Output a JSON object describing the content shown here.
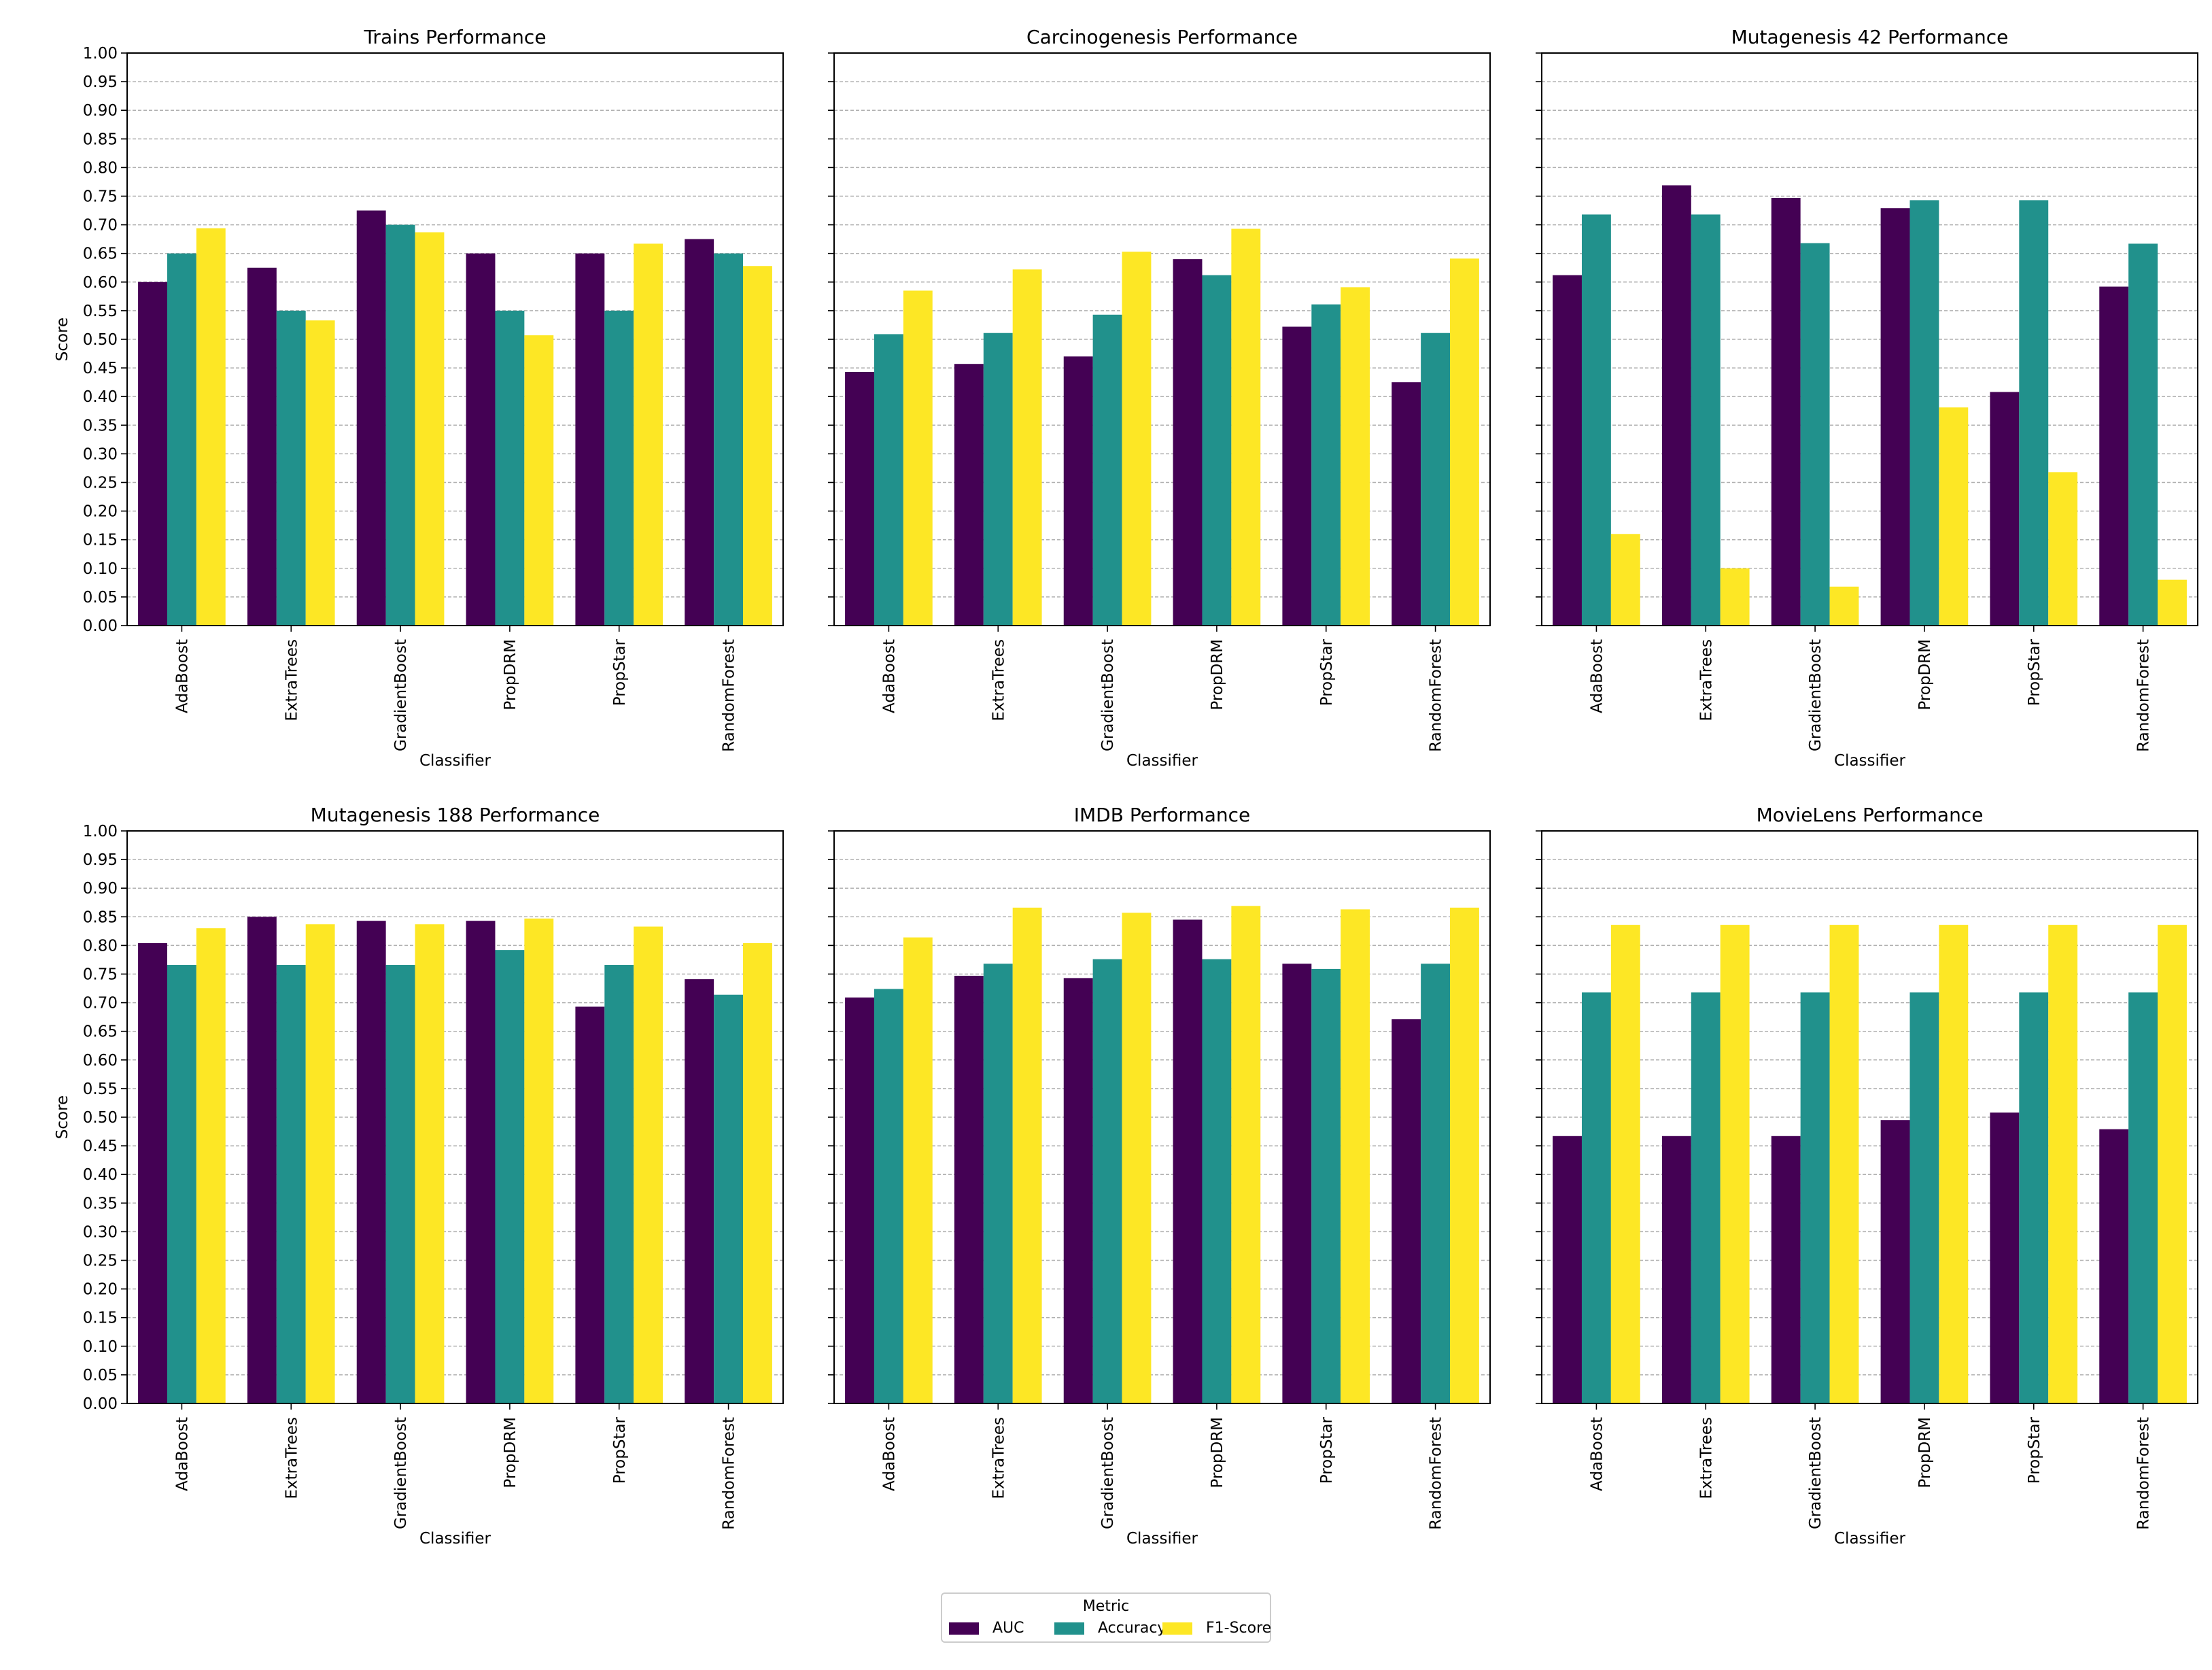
{
  "colors": {
    "AUC": "#440154",
    "Accuracy": "#21918c",
    "F1-Score": "#fde725"
  },
  "legend": {
    "title": "Metric",
    "items": [
      "AUC",
      "Accuracy",
      "F1-Score"
    ]
  },
  "chart_data": [
    {
      "type": "bar",
      "title": "Trains Performance",
      "categories": [
        "AdaBoost",
        "ExtraTrees",
        "GradientBoost",
        "PropDRM",
        "PropStar",
        "RandomForest"
      ],
      "series": [
        {
          "name": "AUC",
          "values": [
            0.6,
            0.625,
            0.725,
            0.65,
            0.65,
            0.675
          ]
        },
        {
          "name": "Accuracy",
          "values": [
            0.65,
            0.55,
            0.7,
            0.55,
            0.55,
            0.65
          ]
        },
        {
          "name": "F1-Score",
          "values": [
            0.694,
            0.533,
            0.687,
            0.507,
            0.667,
            0.628
          ]
        }
      ],
      "xlabel": "Classifier",
      "ylabel": "Score",
      "ylim": [
        0,
        1
      ]
    },
    {
      "type": "bar",
      "title": "Carcinogenesis Performance",
      "categories": [
        "AdaBoost",
        "ExtraTrees",
        "GradientBoost",
        "PropDRM",
        "PropStar",
        "RandomForest"
      ],
      "series": [
        {
          "name": "AUC",
          "values": [
            0.443,
            0.457,
            0.47,
            0.64,
            0.522,
            0.425
          ]
        },
        {
          "name": "Accuracy",
          "values": [
            0.509,
            0.511,
            0.543,
            0.612,
            0.561,
            0.511
          ]
        },
        {
          "name": "F1-Score",
          "values": [
            0.585,
            0.622,
            0.653,
            0.693,
            0.591,
            0.641
          ]
        }
      ],
      "xlabel": "Classifier",
      "ylabel": "",
      "ylim": [
        0,
        1
      ]
    },
    {
      "type": "bar",
      "title": "Mutagenesis 42 Performance",
      "categories": [
        "AdaBoost",
        "ExtraTrees",
        "GradientBoost",
        "PropDRM",
        "PropStar",
        "RandomForest"
      ],
      "series": [
        {
          "name": "AUC",
          "values": [
            0.612,
            0.769,
            0.747,
            0.729,
            0.408,
            0.592
          ]
        },
        {
          "name": "Accuracy",
          "values": [
            0.718,
            0.718,
            0.668,
            0.743,
            0.743,
            0.667
          ]
        },
        {
          "name": "F1-Score",
          "values": [
            0.16,
            0.1,
            0.068,
            0.381,
            0.268,
            0.08
          ]
        }
      ],
      "xlabel": "Classifier",
      "ylabel": "",
      "ylim": [
        0,
        1
      ]
    },
    {
      "type": "bar",
      "title": "Mutagenesis 188 Performance",
      "categories": [
        "AdaBoost",
        "ExtraTrees",
        "GradientBoost",
        "PropDRM",
        "PropStar",
        "RandomForest"
      ],
      "series": [
        {
          "name": "AUC",
          "values": [
            0.804,
            0.85,
            0.843,
            0.843,
            0.693,
            0.741
          ]
        },
        {
          "name": "Accuracy",
          "values": [
            0.766,
            0.766,
            0.766,
            0.792,
            0.766,
            0.714
          ]
        },
        {
          "name": "F1-Score",
          "values": [
            0.83,
            0.837,
            0.837,
            0.847,
            0.833,
            0.804
          ]
        }
      ],
      "xlabel": "Classifier",
      "ylabel": "Score",
      "ylim": [
        0,
        1
      ]
    },
    {
      "type": "bar",
      "title": "IMDB Performance",
      "categories": [
        "AdaBoost",
        "ExtraTrees",
        "GradientBoost",
        "PropDRM",
        "PropStar",
        "RandomForest"
      ],
      "series": [
        {
          "name": "AUC",
          "values": [
            0.709,
            0.747,
            0.743,
            0.845,
            0.768,
            0.671
          ]
        },
        {
          "name": "Accuracy",
          "values": [
            0.724,
            0.768,
            0.776,
            0.776,
            0.759,
            0.768
          ]
        },
        {
          "name": "F1-Score",
          "values": [
            0.814,
            0.866,
            0.857,
            0.869,
            0.863,
            0.866
          ]
        }
      ],
      "xlabel": "Classifier",
      "ylabel": "",
      "ylim": [
        0,
        1
      ]
    },
    {
      "type": "bar",
      "title": "MovieLens Performance",
      "categories": [
        "AdaBoost",
        "ExtraTrees",
        "GradientBoost",
        "PropDRM",
        "PropStar",
        "RandomForest"
      ],
      "series": [
        {
          "name": "AUC",
          "values": [
            0.467,
            0.467,
            0.467,
            0.495,
            0.508,
            0.479
          ]
        },
        {
          "name": "Accuracy",
          "values": [
            0.718,
            0.718,
            0.718,
            0.718,
            0.718,
            0.718
          ]
        },
        {
          "name": "F1-Score",
          "values": [
            0.836,
            0.836,
            0.836,
            0.836,
            0.836,
            0.836
          ]
        }
      ],
      "xlabel": "Classifier",
      "ylabel": "",
      "ylim": [
        0,
        1
      ]
    }
  ]
}
